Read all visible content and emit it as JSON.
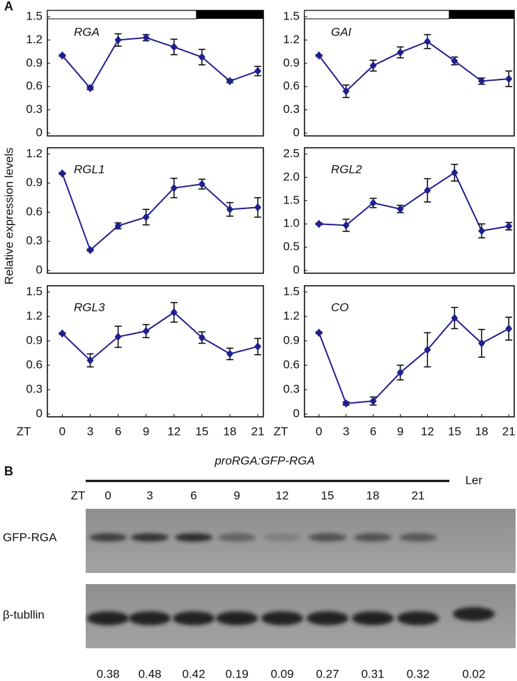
{
  "y_label": "Relative expression levels",
  "panel_label": "A",
  "chart_data": [
    {
      "type": "line",
      "title": "RGA",
      "photoperiod_bar": true,
      "color": "#1f1f8f",
      "x": [
        0,
        3,
        6,
        9,
        12,
        15,
        18,
        21
      ],
      "xlim": [
        -1.6,
        21.6
      ],
      "values": [
        1.0,
        0.58,
        1.2,
        1.23,
        1.11,
        0.98,
        0.67,
        0.8
      ],
      "errors": [
        0.01,
        0.02,
        0.08,
        0.04,
        0.1,
        0.1,
        0.02,
        0.06
      ],
      "ylim": [
        0,
        1.5
      ],
      "yticks": [
        0,
        0.3,
        0.6,
        0.9,
        1.2,
        1.5
      ]
    },
    {
      "type": "line",
      "title": "GAI",
      "photoperiod_bar": true,
      "color": "#1f1f8f",
      "x": [
        0,
        3,
        6,
        9,
        12,
        15,
        18,
        21
      ],
      "xlim": [
        -1.6,
        21.6
      ],
      "values": [
        1.0,
        0.54,
        0.87,
        1.04,
        1.18,
        0.93,
        0.67,
        0.7
      ],
      "errors": [
        0.01,
        0.08,
        0.07,
        0.07,
        0.09,
        0.05,
        0.04,
        0.1
      ],
      "ylim": [
        0,
        1.5
      ],
      "yticks": [
        0,
        0.3,
        0.6,
        0.9,
        1.2,
        1.5
      ]
    },
    {
      "type": "line",
      "title": "RGL1",
      "color": "#1f1f8f",
      "x": [
        0,
        3,
        6,
        9,
        12,
        15,
        18,
        21
      ],
      "xlim": [
        -1.6,
        21.6
      ],
      "values": [
        1.0,
        0.21,
        0.46,
        0.55,
        0.85,
        0.89,
        0.63,
        0.65
      ],
      "errors": [
        0.01,
        0.01,
        0.03,
        0.08,
        0.1,
        0.05,
        0.07,
        0.1
      ],
      "ylim": [
        0,
        1.2
      ],
      "yticks": [
        0,
        0.3,
        0.6,
        0.9,
        1.2
      ]
    },
    {
      "type": "line",
      "title": "RGL2",
      "color": "#1f1f8f",
      "x": [
        0,
        3,
        6,
        9,
        12,
        15,
        18,
        21
      ],
      "xlim": [
        -1.6,
        21.6
      ],
      "values": [
        1.0,
        0.97,
        1.45,
        1.32,
        1.72,
        2.1,
        0.85,
        0.95
      ],
      "errors": [
        0.02,
        0.13,
        0.1,
        0.08,
        0.25,
        0.18,
        0.15,
        0.08
      ],
      "ylim": [
        0,
        2.5
      ],
      "yticks": [
        0,
        0.5,
        {
          "value": 1,
          "label": "1.0"
        },
        1.5,
        {
          "value": 2,
          "label": "2.0"
        },
        2.5
      ]
    },
    {
      "type": "line",
      "title": "RGL3",
      "color": "#1f1f8f",
      "x": [
        0,
        3,
        6,
        9,
        12,
        15,
        18,
        21
      ],
      "xlim": [
        -1.6,
        21.6
      ],
      "xticks": [
        0,
        3,
        6,
        9,
        12,
        15,
        18,
        21
      ],
      "xlabel": "ZT",
      "values": [
        0.99,
        0.66,
        0.95,
        1.02,
        1.25,
        0.94,
        0.74,
        0.83
      ],
      "errors": [
        0.01,
        0.08,
        0.13,
        0.08,
        0.12,
        0.07,
        0.07,
        0.1
      ],
      "ylim": [
        0,
        1.5
      ],
      "yticks": [
        0,
        0.3,
        0.6,
        0.9,
        1.2,
        1.5
      ]
    },
    {
      "type": "line",
      "title": "CO",
      "color": "#1f1f8f",
      "x": [
        0,
        3,
        6,
        9,
        12,
        15,
        18,
        21
      ],
      "xlim": [
        -1.6,
        21.6
      ],
      "xticks": [
        0,
        3,
        6,
        9,
        12,
        15,
        18,
        21
      ],
      "xlabel": "ZT",
      "values": [
        1.0,
        0.13,
        0.16,
        0.51,
        0.79,
        1.18,
        0.87,
        1.05
      ],
      "errors": [
        0.01,
        0.02,
        0.05,
        0.09,
        0.21,
        0.13,
        0.17,
        0.14
      ],
      "ylim": [
        0,
        1.5
      ],
      "yticks": [
        0,
        0.3,
        0.6,
        0.9,
        1.2,
        1.5
      ]
    }
  ],
  "blot": {
    "panel_label": "B",
    "construct": "proRGA:GFP-RGA",
    "zt_label": "ZT",
    "lanes": [
      "0",
      "3",
      "6",
      "9",
      "12",
      "15",
      "18",
      "21",
      "Ler"
    ],
    "rows": [
      "GFP-RGA",
      "β-tubllin"
    ],
    "quantification": [
      0.38,
      0.48,
      0.42,
      0.19,
      0.09,
      0.27,
      0.31,
      0.32,
      0.02
    ]
  }
}
